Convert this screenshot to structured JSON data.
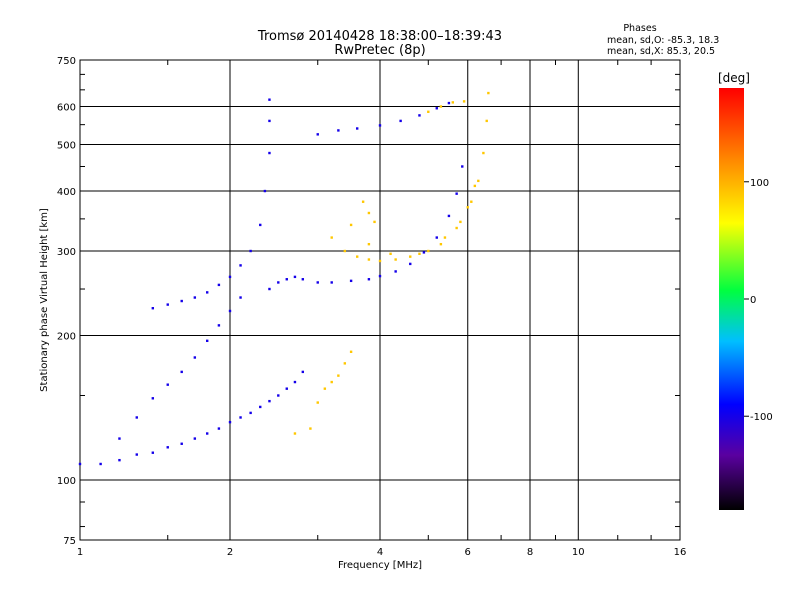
{
  "chart_data": {
    "type": "scatter",
    "title": "Tromsø 20140428 18:38:00–18:39:43",
    "subtitle": "RwPretec (8p)",
    "xlabel": "Frequency [MHz]",
    "ylabel": "Stationary phase Virtual Height [km]",
    "x_scale": "log",
    "y_scale": "log",
    "xlim": [
      1,
      16
    ],
    "ylim": [
      75,
      750
    ],
    "xticks": [
      "1",
      "2",
      "4",
      "6",
      "8",
      "10",
      "16"
    ],
    "yticks": [
      "75",
      "100",
      "200",
      "300",
      "400",
      "500",
      "600",
      "750"
    ],
    "grid": true,
    "stats_header": "Phases",
    "stats_lines": [
      "mean, sd,O: -85.3, 18.3",
      "mean, sd,X:  85.3, 20.5"
    ],
    "colorbar": {
      "label": "[deg]",
      "ticks": [
        "100",
        "0",
        "-100"
      ],
      "range": [
        -180,
        180
      ]
    },
    "series": [
      {
        "name": "O",
        "phase_deg": -100,
        "points": [
          [
            1.0,
            108
          ],
          [
            1.1,
            108
          ],
          [
            1.2,
            110
          ],
          [
            1.3,
            113
          ],
          [
            1.4,
            114
          ],
          [
            1.5,
            117
          ],
          [
            1.6,
            119
          ],
          [
            1.7,
            122
          ],
          [
            1.8,
            125
          ],
          [
            1.9,
            128
          ],
          [
            2.0,
            132
          ],
          [
            2.1,
            135
          ],
          [
            2.2,
            138
          ],
          [
            2.3,
            142
          ],
          [
            2.4,
            146
          ],
          [
            2.5,
            150
          ],
          [
            2.6,
            155
          ],
          [
            2.7,
            160
          ],
          [
            2.8,
            168
          ],
          [
            2.4,
            250
          ],
          [
            2.5,
            258
          ],
          [
            2.6,
            262
          ],
          [
            2.7,
            265
          ],
          [
            2.8,
            262
          ],
          [
            3.0,
            258
          ],
          [
            3.2,
            258
          ],
          [
            3.5,
            260
          ],
          [
            3.8,
            262
          ],
          [
            4.0,
            266
          ],
          [
            4.3,
            272
          ],
          [
            4.6,
            282
          ],
          [
            4.9,
            298
          ],
          [
            5.2,
            320
          ],
          [
            5.5,
            355
          ],
          [
            5.7,
            395
          ],
          [
            5.85,
            450
          ],
          [
            3.0,
            525
          ],
          [
            3.3,
            535
          ],
          [
            3.6,
            540
          ],
          [
            4.0,
            548
          ],
          [
            4.4,
            560
          ],
          [
            4.8,
            575
          ],
          [
            5.2,
            595
          ],
          [
            5.5,
            610
          ],
          [
            1.4,
            228
          ],
          [
            1.5,
            232
          ],
          [
            1.6,
            236
          ],
          [
            1.7,
            240
          ],
          [
            1.8,
            246
          ],
          [
            1.9,
            255
          ],
          [
            2.0,
            265
          ],
          [
            2.1,
            280
          ],
          [
            2.2,
            300
          ],
          [
            2.3,
            340
          ],
          [
            2.35,
            400
          ],
          [
            2.4,
            480
          ],
          [
            2.4,
            560
          ],
          [
            2.4,
            620
          ],
          [
            1.2,
            122
          ],
          [
            1.3,
            135
          ],
          [
            1.4,
            148
          ],
          [
            1.5,
            158
          ],
          [
            1.6,
            168
          ],
          [
            1.7,
            180
          ],
          [
            1.8,
            195
          ],
          [
            1.9,
            210
          ],
          [
            2.0,
            225
          ],
          [
            2.1,
            240
          ]
        ]
      },
      {
        "name": "X",
        "phase_deg": 90,
        "points": [
          [
            3.2,
            320
          ],
          [
            3.4,
            300
          ],
          [
            3.6,
            292
          ],
          [
            3.8,
            288
          ],
          [
            4.0,
            286
          ],
          [
            4.3,
            288
          ],
          [
            4.6,
            292
          ],
          [
            5.0,
            300
          ],
          [
            5.4,
            320
          ],
          [
            5.8,
            345
          ],
          [
            6.1,
            380
          ],
          [
            6.3,
            420
          ],
          [
            6.45,
            480
          ],
          [
            6.55,
            560
          ],
          [
            6.6,
            640
          ],
          [
            3.5,
            340
          ],
          [
            3.8,
            310
          ],
          [
            4.2,
            296
          ],
          [
            4.8,
            296
          ],
          [
            5.3,
            310
          ],
          [
            5.7,
            335
          ],
          [
            6.0,
            370
          ],
          [
            6.2,
            410
          ],
          [
            5.0,
            585
          ],
          [
            5.3,
            600
          ],
          [
            5.6,
            612
          ],
          [
            5.9,
            615
          ],
          [
            2.7,
            125
          ],
          [
            2.9,
            128
          ],
          [
            3.0,
            145
          ],
          [
            3.1,
            155
          ],
          [
            3.2,
            160
          ],
          [
            3.3,
            165
          ],
          [
            3.4,
            175
          ],
          [
            3.5,
            185
          ],
          [
            3.7,
            380
          ],
          [
            3.8,
            360
          ],
          [
            3.9,
            345
          ]
        ]
      }
    ]
  }
}
